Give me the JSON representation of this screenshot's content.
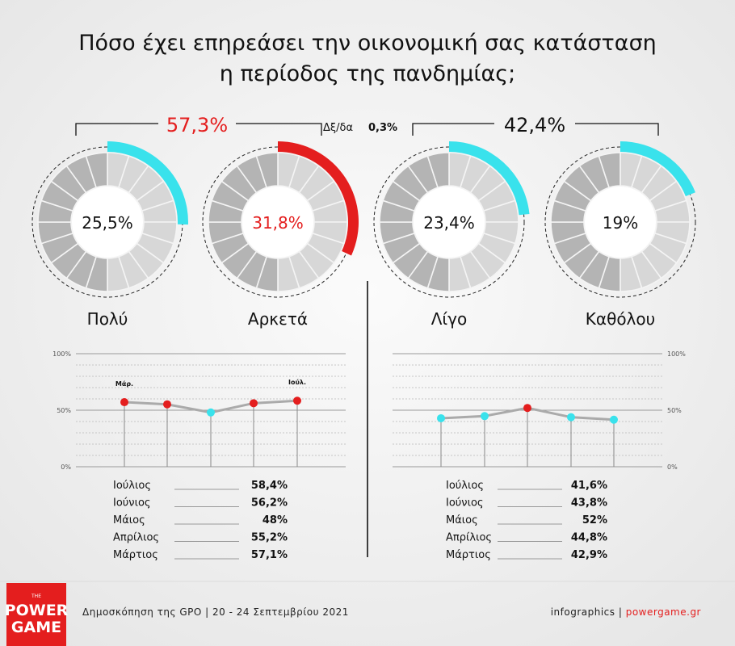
{
  "title": {
    "line1": "Πόσο έχει επηρεάσει την οικονομική σας κατάσταση",
    "line2": "η περίοδος της πανδημίας;"
  },
  "groups": {
    "left_total": "57,3%",
    "right_total": "42,4%",
    "dk_label": "Δξ/δα",
    "dk_value": "0,3%"
  },
  "donuts": [
    {
      "label": "Πολύ",
      "value_text": "25,5%",
      "value": 25.5,
      "arc_color": "#39e2ec",
      "text_color": "#111111"
    },
    {
      "label": "Αρκετά",
      "value_text": "31,8%",
      "value": 31.8,
      "arc_color": "#e41e1e",
      "text_color": "#e41e1e"
    },
    {
      "label": "Λίγο",
      "value_text": "23,4%",
      "value": 23.4,
      "arc_color": "#39e2ec",
      "text_color": "#111111"
    },
    {
      "label": "Καθόλου",
      "value_text": "19%",
      "value": 19,
      "arc_color": "#39e2ec",
      "text_color": "#111111"
    }
  ],
  "chart_data": [
    {
      "type": "line",
      "title": "",
      "categories": [
        "Μάρτιος",
        "Απρίλιος",
        "Μάιος",
        "Ιούνιος",
        "Ιούλιος"
      ],
      "series": [
        {
          "name": "",
          "values": [
            57.1,
            55.2,
            48,
            56.2,
            58.4
          ]
        }
      ],
      "marker_colors": [
        "#e41e1e",
        "#e41e1e",
        "#39e2ec",
        "#e41e1e",
        "#e41e1e"
      ],
      "point_labels": {
        "first": "Μάρ.",
        "last": "Ιούλ."
      },
      "yticks": [
        "0%",
        "50%",
        "100%"
      ],
      "ylim": [
        0,
        100
      ],
      "grid": true
    },
    {
      "type": "line",
      "title": "",
      "categories": [
        "Μάρτιος",
        "Απρίλιος",
        "Μάιος",
        "Ιούνιος",
        "Ιούλιος"
      ],
      "series": [
        {
          "name": "",
          "values": [
            42.9,
            44.8,
            52,
            43.8,
            41.6
          ]
        }
      ],
      "marker_colors": [
        "#39e2ec",
        "#39e2ec",
        "#e41e1e",
        "#39e2ec",
        "#39e2ec"
      ],
      "yticks": [
        "0%",
        "50%",
        "100%"
      ],
      "ylim": [
        0,
        100
      ],
      "grid": true
    }
  ],
  "tables": {
    "left": [
      {
        "month": "Ιούλιος",
        "value": "58,4%"
      },
      {
        "month": "Ιούνιος",
        "value": "56,2%"
      },
      {
        "month": "Μάιος",
        "value": "48%"
      },
      {
        "month": "Απρίλιος",
        "value": "55,2%"
      },
      {
        "month": "Μάρτιος",
        "value": "57,1%"
      }
    ],
    "right": [
      {
        "month": "Ιούλιος",
        "value": "41,6%"
      },
      {
        "month": "Ιούνιος",
        "value": "43,8%"
      },
      {
        "month": "Μάιος",
        "value": "52%"
      },
      {
        "month": "Απρίλιος",
        "value": "44,8%"
      },
      {
        "month": "Μάρτιος",
        "value": "42,9%"
      }
    ]
  },
  "footer": {
    "source": "Δημοσκόπηση της GPO | 20 - 24 Σεπτεμβρίου 2021",
    "credit_prefix": "infographics | ",
    "credit_site": "powergame.gr"
  },
  "logo": {
    "the": "THE",
    "power": "POWER",
    "game": "GAME"
  },
  "colors": {
    "red": "#e41e1e",
    "cyan": "#39e2ec",
    "ring_light": "#d7d7d7",
    "ring_dark": "#b4b4b4"
  }
}
